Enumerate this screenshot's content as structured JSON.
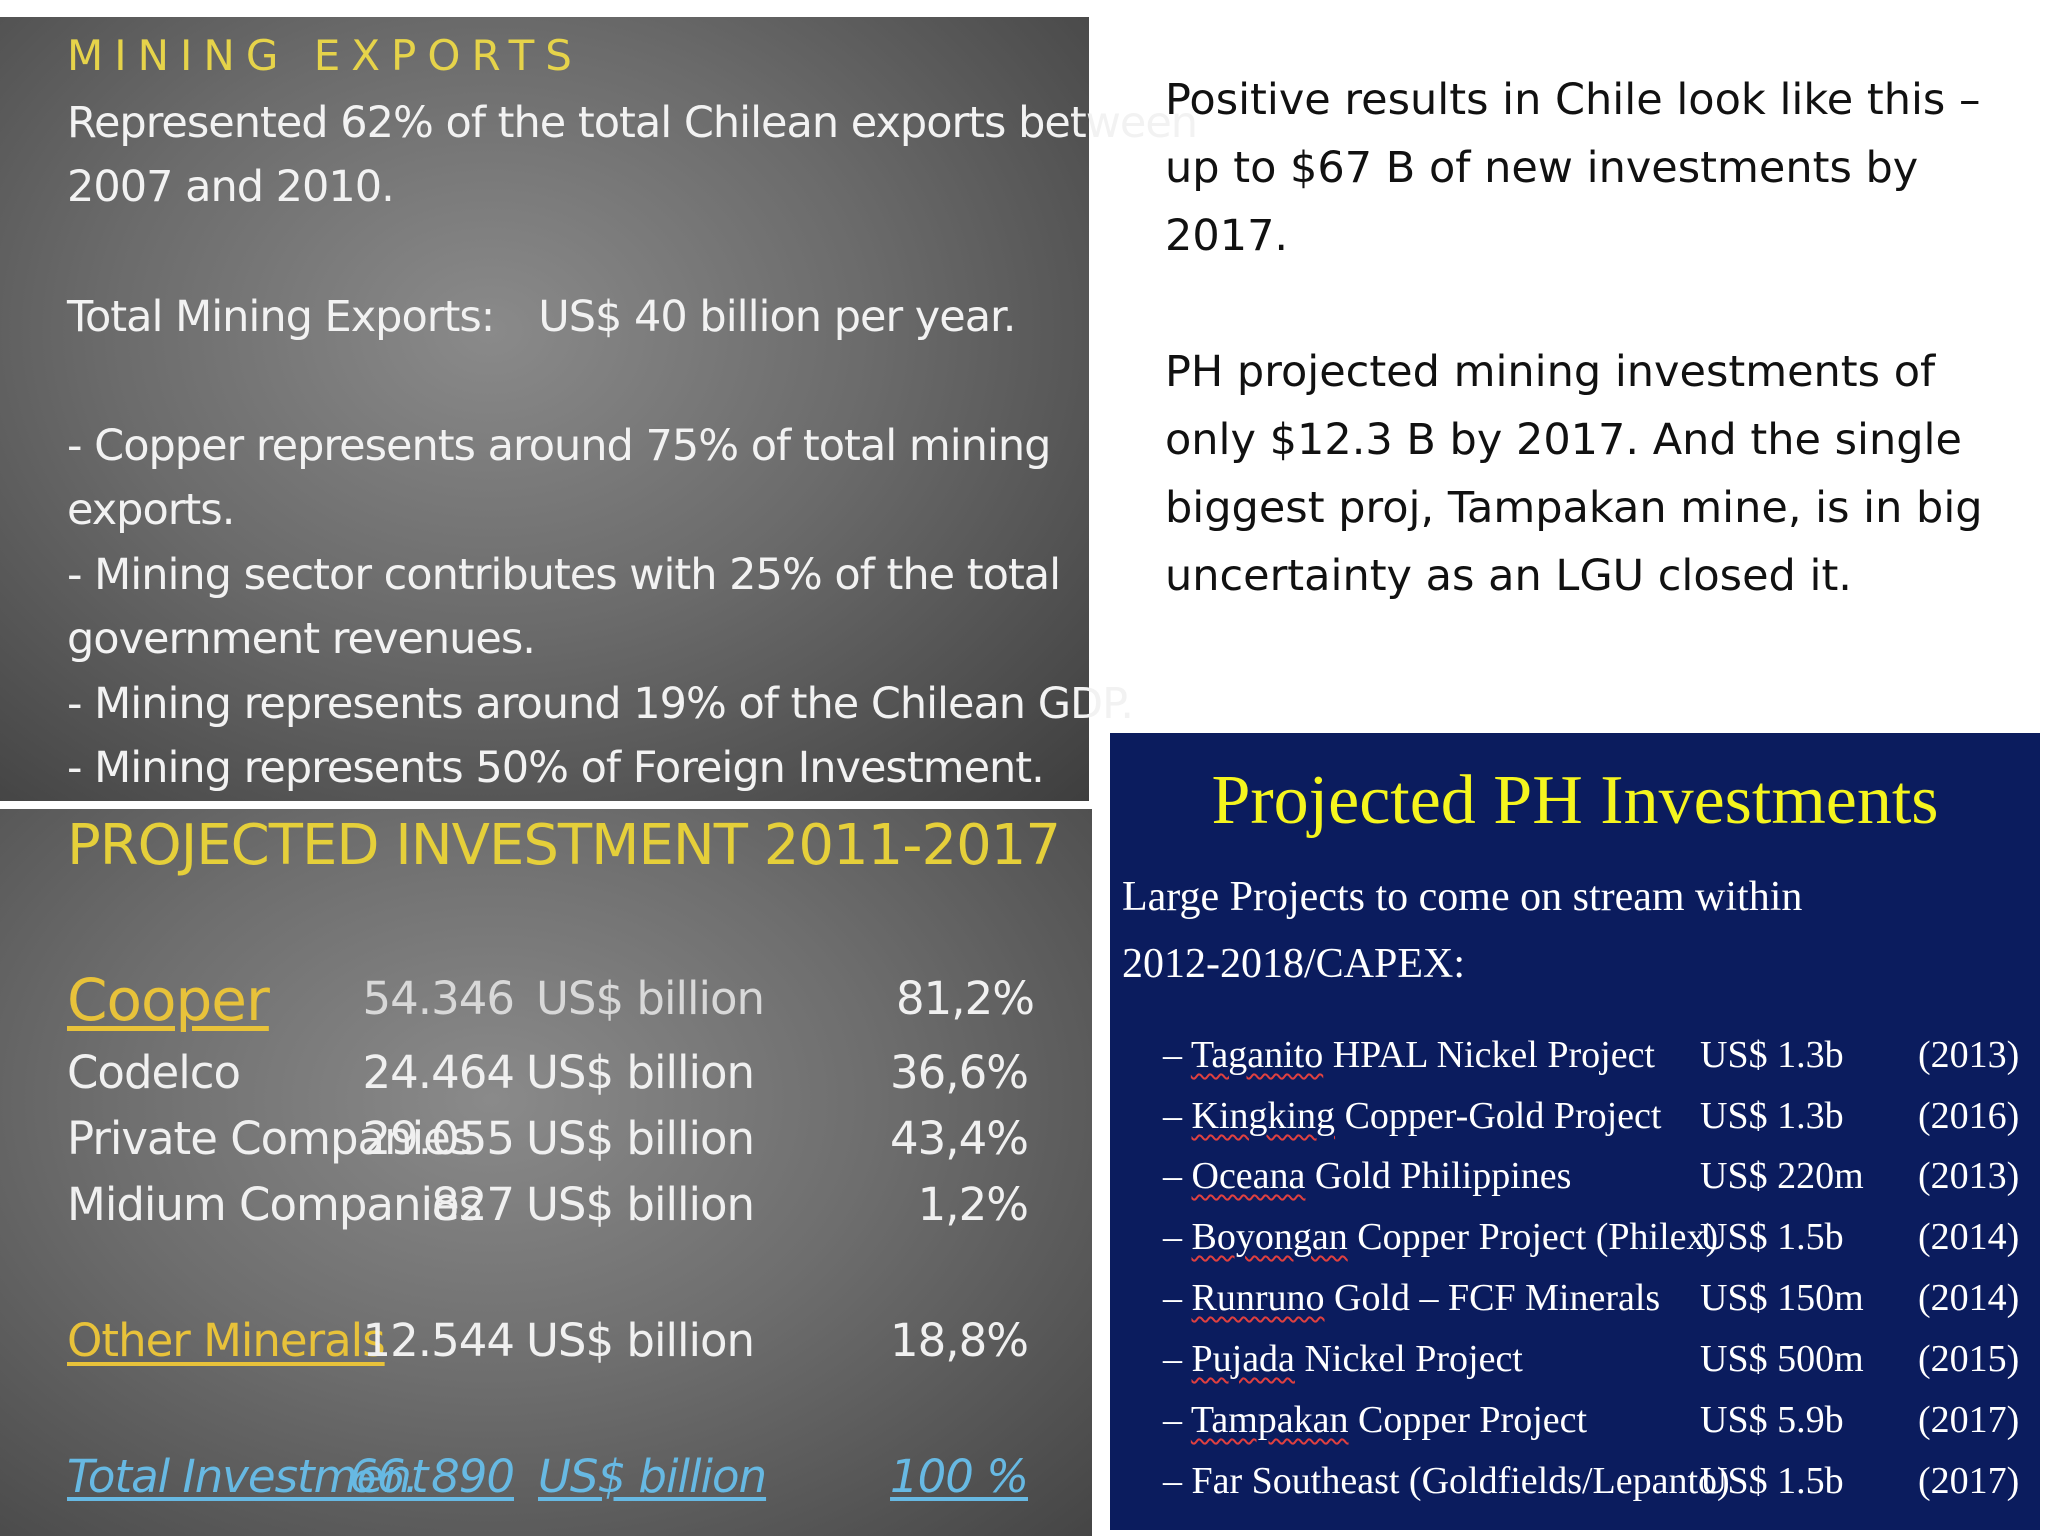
{
  "mining": {
    "title": "MINING EXPORTS",
    "line1": "Represented 62% of the total Chilean exports between",
    "line2": "2007 and 2010.",
    "total_label": "Total Mining Exports:",
    "total_value": "US$ 40 billion per year.",
    "b1a": "- Copper represents around 75% of total mining",
    "b1b": "exports.",
    "b2a": "- Mining sector contributes with 25% of the total",
    "b2b": "government revenues.",
    "b3": "- Mining represents around 19% of the Chilean GDP.",
    "b4": "- Mining represents 50% of Foreign Investment."
  },
  "projected": {
    "title": "PROJECTED INVESTMENT  2011-2017",
    "rows": [
      {
        "name": "Cooper",
        "value": "54.346",
        "unit": "US$ billion",
        "pct": "81,2%"
      },
      {
        "name": "Codelco",
        "value": "24.464",
        "unit": "US$ billion",
        "pct": "36,6%"
      },
      {
        "name": "Private Companies",
        "value": "29.055",
        "unit": "US$ billion",
        "pct": "43,4%"
      },
      {
        "name": "Midium Companies",
        "value": "827",
        "unit": "US$ billion",
        "pct": "1,2%"
      },
      {
        "name": "Other Minerals",
        "value": "12.544",
        "unit": "US$ billion",
        "pct": "18,8%"
      },
      {
        "name": "Total Investment",
        "value": "66. 890",
        "unit": "US$ billion",
        "pct": "100 %"
      }
    ]
  },
  "right_text": {
    "p1": "Positive results in Chile look like this – up to $67 B of new investments by 2017.",
    "p2": "PH projected mining investments of only $12.3 B by 2017. And the single biggest proj, Tampakan mine, is in big uncertainty as an LGU closed it."
  },
  "ph": {
    "title": "Projected PH Investments",
    "sub1": "Large Projects to come on stream within",
    "sub2": "2012-2018/CAPEX:",
    "rows": [
      {
        "dash": "– ",
        "u": "Taganito",
        "rest": " HPAL Nickel Project",
        "amount": "US$ 1.3b",
        "year": "(2013)"
      },
      {
        "dash": "– ",
        "u": "Kingking",
        "rest": "  Copper-Gold  Project",
        "amount": "US$ 1.3b",
        "year": "(2016)"
      },
      {
        "dash": "– ",
        "u": "Oceana",
        "rest": " Gold  Philippines",
        "amount": "US$ 220m",
        "year": "(2013)"
      },
      {
        "dash": "– ",
        "u": "Boyongan",
        "rest": " Copper Project (Philex)",
        "amount": "US$ 1.5b",
        "year": "(2014)"
      },
      {
        "dash": "– ",
        "u": "Runruno",
        "rest": " Gold  – FCF Minerals",
        "amount": "US$ 150m",
        "year": "(2014)"
      },
      {
        "dash": "– ",
        "u": "Pujada",
        "rest": " Nickel Project",
        "amount": "US$ 500m",
        "year": "(2015)"
      },
      {
        "dash": "– ",
        "u": "Tampakan",
        "rest": " Copper Project",
        "amount": "US$ 5.9b",
        "year": "(2017)"
      },
      {
        "dash": "– ",
        "u": "",
        "rest": "Far Southeast (Goldfields/Lepanto)",
        "amount": "US$ 1.5b",
        "year": "(2017)"
      }
    ]
  }
}
